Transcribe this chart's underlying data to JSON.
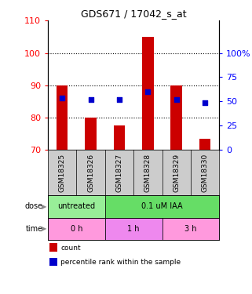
{
  "title": "GDS671 / 17042_s_at",
  "samples": [
    "GSM18325",
    "GSM18326",
    "GSM18327",
    "GSM18328",
    "GSM18329",
    "GSM18330"
  ],
  "bar_bottoms": [
    70,
    70,
    70,
    70,
    70,
    70
  ],
  "bar_tops": [
    90,
    80,
    77.5,
    105,
    90,
    73.5
  ],
  "blue_y": [
    86,
    85.5,
    85.5,
    88,
    85.5,
    84.5
  ],
  "ylim": [
    70,
    110
  ],
  "y_left_ticks": [
    70,
    80,
    90,
    100,
    110
  ],
  "y_right_tick_positions": [
    70,
    77.5,
    85,
    92.5,
    100
  ],
  "y_right_labels": [
    "0",
    "25",
    "50",
    "75",
    "100%"
  ],
  "bar_color": "#cc0000",
  "blue_color": "#0000cc",
  "dot_size": 18,
  "bar_width": 0.4,
  "sample_bg_color": "#cccccc",
  "dose_info": [
    {
      "label": "untreated",
      "xmin": 0.5,
      "xmax": 2.5,
      "color": "#98ee98"
    },
    {
      "label": "0.1 uM IAA",
      "xmin": 2.5,
      "xmax": 6.5,
      "color": "#66dd66"
    }
  ],
  "time_info": [
    {
      "label": "0 h",
      "xmin": 0.5,
      "xmax": 2.5,
      "color": "#ff99dd"
    },
    {
      "label": "1 h",
      "xmin": 2.5,
      "xmax": 4.5,
      "color": "#ee88ee"
    },
    {
      "label": "3 h",
      "xmin": 4.5,
      "xmax": 6.5,
      "color": "#ff99dd"
    }
  ],
  "legend_items": [
    {
      "label": "count",
      "color": "#cc0000"
    },
    {
      "label": "percentile rank within the sample",
      "color": "#0000cc"
    }
  ]
}
